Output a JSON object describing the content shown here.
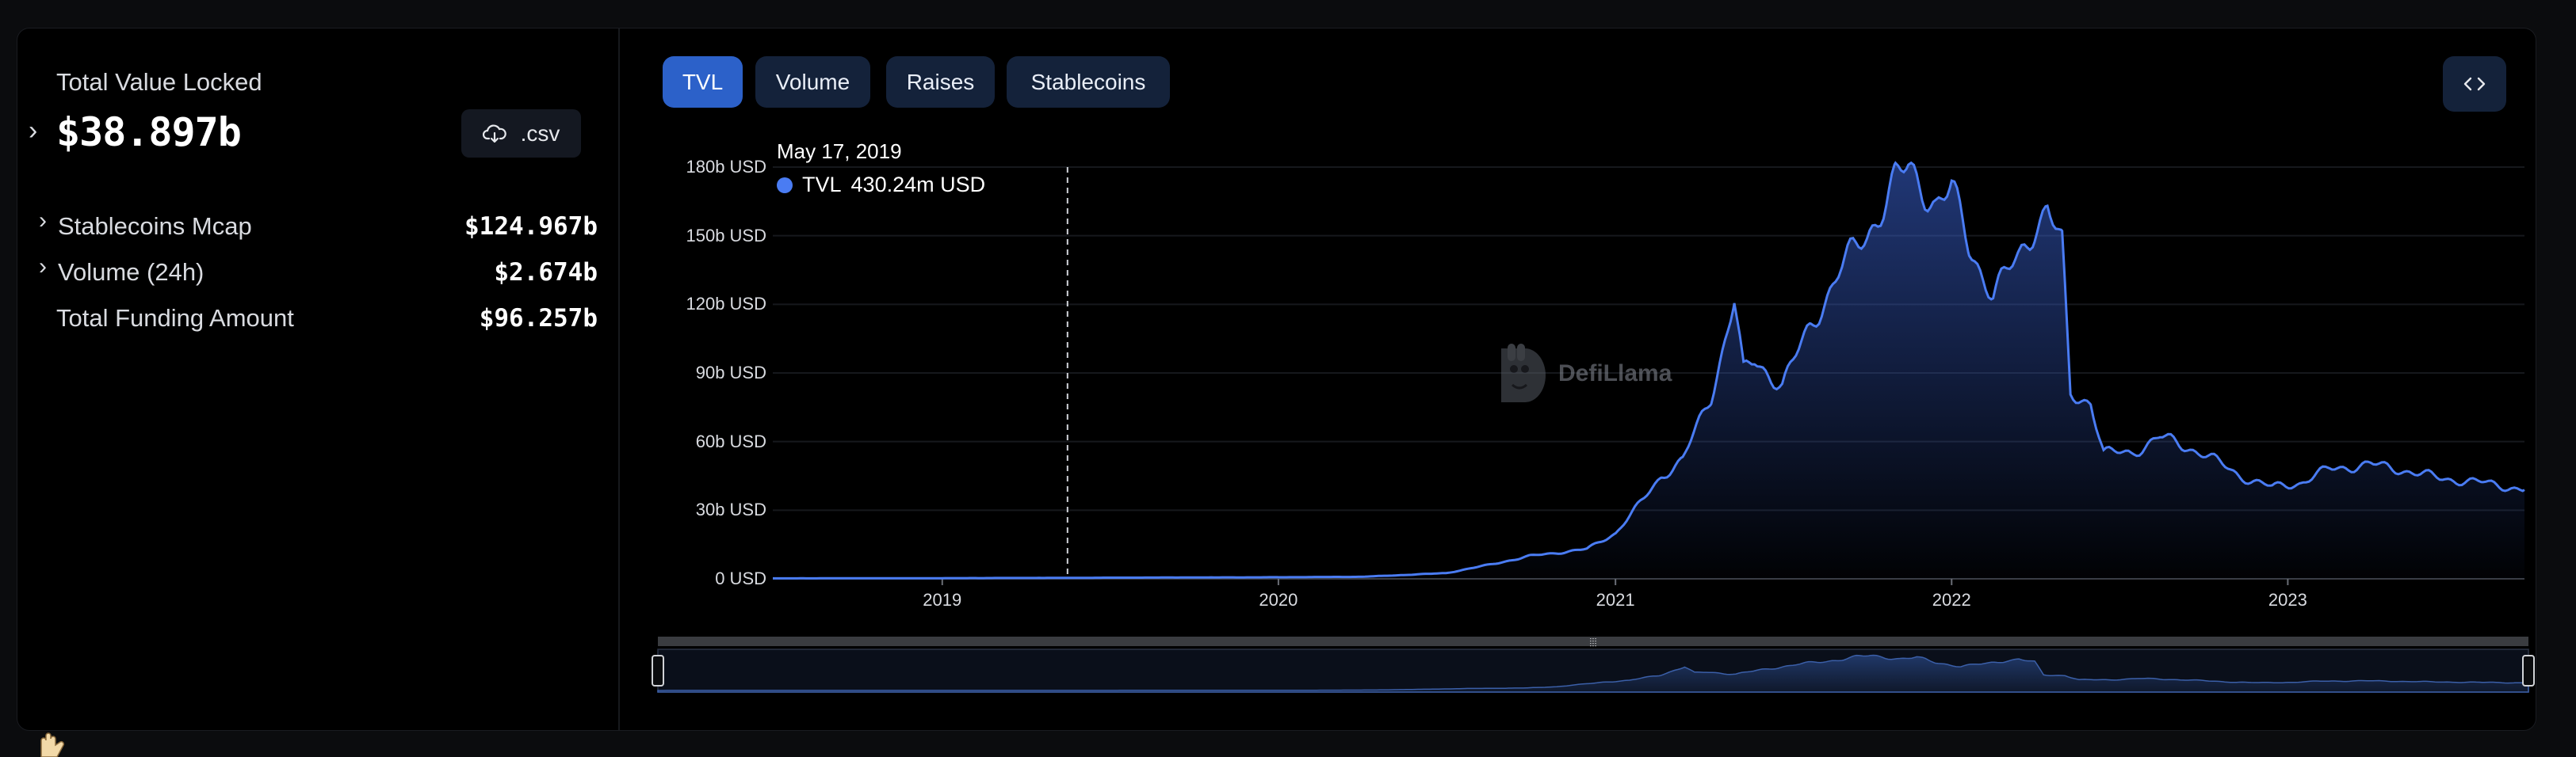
{
  "summary": {
    "tvl_label": "Total Value Locked",
    "tvl_value": "$38.897b",
    "csv_label": ".csv",
    "rows": [
      {
        "label": "Stablecoins Mcap",
        "value": "$124.967b"
      },
      {
        "label": "Volume (24h)",
        "value": "$2.674b"
      },
      {
        "label": "Total Funding Amount",
        "value": "$96.257b"
      }
    ]
  },
  "tabs": [
    "TVL",
    "Volume",
    "Raises",
    "Stablecoins"
  ],
  "active_tab": "TVL",
  "tooltip": {
    "date": "May 17, 2019",
    "series": "TVL",
    "value": "430.24m USD"
  },
  "watermark": "DefiLlama",
  "colors": {
    "accent": "#2c61c9",
    "line": "#4a7cf3",
    "tab_bg": "#14223a",
    "background": "#000000"
  },
  "icons": {
    "csv": "cloud-download-icon",
    "embed": "code-brackets-icon",
    "expand": "chevron-right-icon"
  },
  "chart_data": {
    "type": "area",
    "series": [
      {
        "name": "TVL",
        "unit": "USD",
        "points": [
          [
            "2018-07-01",
            0.2
          ],
          [
            "2019-01-01",
            0.3
          ],
          [
            "2019-05-17",
            0.43
          ],
          [
            "2019-07-01",
            0.5
          ],
          [
            "2020-01-01",
            0.7
          ],
          [
            "2020-04-01",
            0.9
          ],
          [
            "2020-07-01",
            2.5
          ],
          [
            "2020-08-15",
            6
          ],
          [
            "2020-10-01",
            10
          ],
          [
            "2020-12-01",
            13
          ],
          [
            "2021-01-01",
            20
          ],
          [
            "2021-02-01",
            35
          ],
          [
            "2021-02-20",
            45
          ],
          [
            "2021-03-15",
            52
          ],
          [
            "2021-04-15",
            80
          ],
          [
            "2021-05-10",
            122
          ],
          [
            "2021-05-20",
            90
          ],
          [
            "2021-06-01",
            95
          ],
          [
            "2021-07-01",
            85
          ],
          [
            "2021-08-01",
            110
          ],
          [
            "2021-09-01",
            135
          ],
          [
            "2021-10-01",
            150
          ],
          [
            "2021-11-01",
            175
          ],
          [
            "2021-11-15",
            178
          ],
          [
            "2021-12-15",
            165
          ],
          [
            "2022-01-01",
            170
          ],
          [
            "2022-01-20",
            145
          ],
          [
            "2022-02-15",
            125
          ],
          [
            "2022-03-15",
            140
          ],
          [
            "2022-04-01",
            155
          ],
          [
            "2022-04-15",
            162
          ],
          [
            "2022-05-01",
            145
          ],
          [
            "2022-05-10",
            80
          ],
          [
            "2022-06-01",
            78
          ],
          [
            "2022-06-15",
            55
          ],
          [
            "2022-07-15",
            55
          ],
          [
            "2022-08-15",
            62
          ],
          [
            "2022-10-01",
            55
          ],
          [
            "2022-11-10",
            45
          ],
          [
            "2022-12-15",
            40
          ],
          [
            "2023-01-15",
            42
          ],
          [
            "2023-02-15",
            48
          ],
          [
            "2023-04-01",
            50
          ],
          [
            "2023-05-01",
            48
          ],
          [
            "2023-06-15",
            44
          ],
          [
            "2023-08-01",
            42
          ],
          [
            "2023-09-01",
            40
          ],
          [
            "2023-09-15",
            38.9
          ]
        ]
      }
    ],
    "y_ticks": [
      "0 USD",
      "30b USD",
      "60b USD",
      "90b USD",
      "120b USD",
      "150b USD",
      "180b USD"
    ],
    "y_range": [
      0,
      180
    ],
    "x_ticks": [
      "2019",
      "2020",
      "2021",
      "2022",
      "2023"
    ],
    "x_range": [
      "2018-07-01",
      "2023-09-15"
    ],
    "grid": true
  }
}
